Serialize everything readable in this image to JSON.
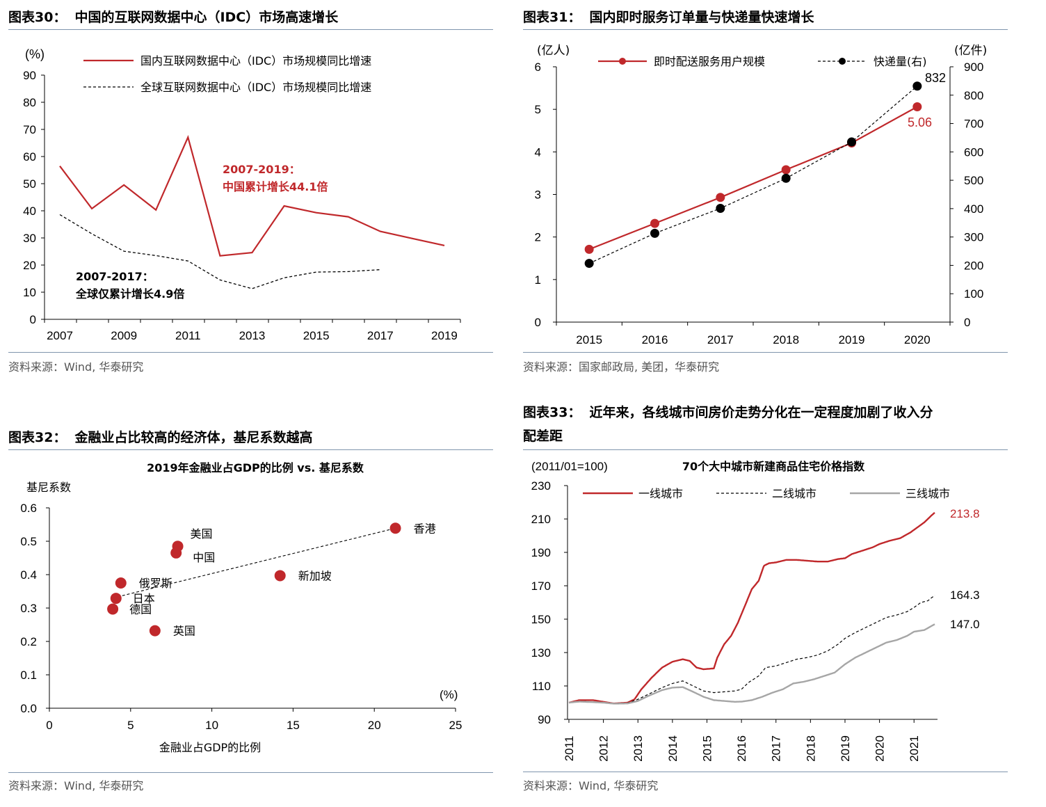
{
  "charts": [
    {
      "fig_no": "图表30：",
      "heading": "中国的互联网数据中心（IDC）市场高速增长",
      "source": "资料来源：Wind, 华泰研究",
      "unit_left": "(%)",
      "annotation_cn": [
        "2007-2019：",
        "中国累计增长44.1倍"
      ],
      "annotation_global": [
        "2007-2017：",
        "全球仅累计增长4.9倍"
      ]
    },
    {
      "fig_no": "图表31：",
      "heading": "国内即时服务订单量与快递量快速增长",
      "source": "资料来源：国家邮政局, 美团，华泰研究",
      "unit_left": "(亿人)",
      "unit_right": "(亿件)",
      "label_end_left": "5.06",
      "label_end_right": "832"
    },
    {
      "fig_no": "图表32：",
      "heading": "金融业占比较高的经济体，基尼系数越高",
      "source": "资料来源：Wind, 华泰研究",
      "subtitle": "2019年金融业占GDP的比例 vs. 基尼系数",
      "unit_x": "(%)"
    },
    {
      "fig_no": "图表33：",
      "heading": [
        "近年来，各线城市间房价走势分化在一定程度加剧了收入分",
        "配差距"
      ],
      "source": "资料来源：Wind, 华泰研究",
      "subtitle": "70个大中城市新建商品住宅价格指数",
      "unit_left": "(2011/01=100)",
      "end_labels": [
        "213.8",
        "164.3",
        "147.0"
      ]
    }
  ],
  "chart_data": [
    {
      "type": "line",
      "x": [
        2007,
        2008,
        2009,
        2010,
        2011,
        2012,
        2013,
        2014,
        2015,
        2016,
        2017,
        2018,
        2019
      ],
      "series": [
        {
          "name": "国内互联网数据中心（IDC）市场规模同比增速",
          "color": "#c0282b",
          "style": "solid",
          "values": [
            56.5,
            40.8,
            49.5,
            40.3,
            67.1,
            23.4,
            24.6,
            41.8,
            39.3,
            37.8,
            32.4,
            29.8,
            27.2
          ]
        },
        {
          "name": "全球互联网数据中心（IDC）市场规模同比增速",
          "color": "#000000",
          "style": "dashed",
          "values": [
            38.6,
            31.5,
            25.1,
            23.5,
            21.5,
            14.5,
            11.3,
            15.3,
            17.4,
            17.6,
            18.3,
            null,
            null
          ]
        }
      ],
      "xticks": [
        "2007",
        "2009",
        "2011",
        "2013",
        "2015",
        "2017",
        "2019"
      ],
      "ylim": [
        0,
        90
      ],
      "yticks": [
        "0",
        "10",
        "20",
        "30",
        "40",
        "50",
        "60",
        "70",
        "80",
        "90"
      ],
      "legend": "top-left",
      "grid": false
    },
    {
      "type": "line",
      "x": [
        2015,
        2016,
        2017,
        2018,
        2019,
        2020
      ],
      "series": [
        {
          "name": "即时配送服务用户规模",
          "axis": "left",
          "color": "#c0282b",
          "style": "solid",
          "marker": "circle",
          "values": [
            1.71,
            2.32,
            2.93,
            3.58,
            4.21,
            5.06
          ]
        },
        {
          "name": "快递量(右)",
          "axis": "right",
          "color": "#000000",
          "style": "dashed",
          "marker": "circle",
          "values": [
            207,
            313,
            401,
            507,
            635,
            832
          ]
        }
      ],
      "xticks": [
        "2015",
        "2016",
        "2017",
        "2018",
        "2019",
        "2020"
      ],
      "ylim_left": [
        0,
        6
      ],
      "yticks_left": [
        "0",
        "1",
        "2",
        "3",
        "4",
        "5",
        "6"
      ],
      "ylim_right": [
        0,
        900
      ],
      "yticks_right": [
        "0",
        "100",
        "200",
        "300",
        "400",
        "500",
        "600",
        "700",
        "800",
        "900"
      ],
      "legend": "top",
      "grid": false
    },
    {
      "type": "scatter",
      "xlabel": "金融业占GDP的比例",
      "ylabel": "基尼系数",
      "xlim": [
        0,
        25
      ],
      "xticks": [
        "0",
        "5",
        "10",
        "15",
        "20",
        "25"
      ],
      "ylim": [
        0,
        0.6
      ],
      "yticks": [
        "0.0",
        "0.1",
        "0.2",
        "0.3",
        "0.4",
        "0.5",
        "0.6"
      ],
      "color": "#c0282b",
      "points": [
        {
          "label": "香港",
          "x": 21.3,
          "y": 0.539
        },
        {
          "label": "美国",
          "x": 7.9,
          "y": 0.485
        },
        {
          "label": "中国",
          "x": 7.8,
          "y": 0.465
        },
        {
          "label": "新加坡",
          "x": 14.2,
          "y": 0.397
        },
        {
          "label": "俄罗斯",
          "x": 4.4,
          "y": 0.375
        },
        {
          "label": "日本",
          "x": 4.1,
          "y": 0.329
        },
        {
          "label": "德国",
          "x": 3.9,
          "y": 0.297
        },
        {
          "label": "英国",
          "x": 6.5,
          "y": 0.232
        }
      ],
      "trendline": {
        "x": [
          3.9,
          21.3
        ],
        "y": [
          0.33,
          0.539
        ],
        "style": "dashed",
        "color": "#000000"
      },
      "grid": false
    },
    {
      "type": "line",
      "x_start": 2011.0,
      "x_end": 2021.6,
      "sample_step": 0.1,
      "xticks": [
        "2011",
        "2012",
        "2013",
        "2014",
        "2015",
        "2016",
        "2017",
        "2018",
        "2019",
        "2020",
        "2021"
      ],
      "ylim": [
        90,
        230
      ],
      "yticks": [
        "90",
        "110",
        "130",
        "150",
        "170",
        "190",
        "210",
        "230"
      ],
      "series": [
        {
          "name": "一线城市",
          "color": "#c0282b",
          "style": "solid",
          "knots": [
            [
              2011.0,
              100
            ],
            [
              2011.3,
              101.5
            ],
            [
              2011.7,
              101.5
            ],
            [
              2012.0,
              100.5
            ],
            [
              2012.3,
              99.5
            ],
            [
              2012.7,
              100
            ],
            [
              2012.9,
              102
            ],
            [
              2013.1,
              108
            ],
            [
              2013.4,
              115
            ],
            [
              2013.7,
              121
            ],
            [
              2014.0,
              124.5
            ],
            [
              2014.3,
              126
            ],
            [
              2014.5,
              125
            ],
            [
              2014.7,
              121
            ],
            [
              2014.9,
              120
            ],
            [
              2015.2,
              120.5
            ],
            [
              2015.3,
              127
            ],
            [
              2015.5,
              135
            ],
            [
              2015.7,
              140
            ],
            [
              2015.9,
              148
            ],
            [
              2016.1,
              158
            ],
            [
              2016.3,
              168
            ],
            [
              2016.5,
              173
            ],
            [
              2016.65,
              182
            ],
            [
              2016.8,
              183.5
            ],
            [
              2017.0,
              184
            ],
            [
              2017.3,
              185.5
            ],
            [
              2017.6,
              185.5
            ],
            [
              2017.9,
              185
            ],
            [
              2018.2,
              184.5
            ],
            [
              2018.5,
              184.5
            ],
            [
              2018.8,
              186
            ],
            [
              2019.0,
              186.5
            ],
            [
              2019.2,
              189
            ],
            [
              2019.5,
              191
            ],
            [
              2019.8,
              193
            ],
            [
              2020.0,
              195
            ],
            [
              2020.3,
              197
            ],
            [
              2020.6,
              198.5
            ],
            [
              2020.9,
              202
            ],
            [
              2021.1,
              205
            ],
            [
              2021.3,
              208
            ],
            [
              2021.5,
              212
            ],
            [
              2021.6,
              213.8
            ]
          ]
        },
        {
          "name": "二线城市",
          "color": "#000000",
          "style": "dashed",
          "knots": [
            [
              2011.0,
              100
            ],
            [
              2011.3,
              100.8
            ],
            [
              2011.7,
              100.5
            ],
            [
              2012.0,
              100
            ],
            [
              2012.3,
              99.5
            ],
            [
              2012.7,
              99.8
            ],
            [
              2013.0,
              102
            ],
            [
              2013.3,
              105
            ],
            [
              2013.7,
              109
            ],
            [
              2014.0,
              111.5
            ],
            [
              2014.3,
              113
            ],
            [
              2014.6,
              110
            ],
            [
              2014.9,
              107
            ],
            [
              2015.2,
              106
            ],
            [
              2015.5,
              106.5
            ],
            [
              2015.8,
              107
            ],
            [
              2016.0,
              108
            ],
            [
              2016.2,
              112
            ],
            [
              2016.5,
              116
            ],
            [
              2016.7,
              121
            ],
            [
              2017.0,
              122
            ],
            [
              2017.3,
              124
            ],
            [
              2017.6,
              126
            ],
            [
              2017.9,
              127
            ],
            [
              2018.2,
              128.5
            ],
            [
              2018.5,
              131
            ],
            [
              2018.8,
              135
            ],
            [
              2019.0,
              138.5
            ],
            [
              2019.3,
              142
            ],
            [
              2019.6,
              145
            ],
            [
              2019.9,
              148
            ],
            [
              2020.2,
              151
            ],
            [
              2020.5,
              152.5
            ],
            [
              2020.8,
              154.5
            ],
            [
              2021.0,
              157
            ],
            [
              2021.2,
              160
            ],
            [
              2021.4,
              161
            ],
            [
              2021.6,
              164.3
            ]
          ]
        },
        {
          "name": "三线城市",
          "color": "#a6a6a6",
          "style": "solid",
          "knots": [
            [
              2011.0,
              100
            ],
            [
              2011.3,
              100.6
            ],
            [
              2011.7,
              100.3
            ],
            [
              2012.0,
              100
            ],
            [
              2012.3,
              99.4
            ],
            [
              2012.7,
              99.5
            ],
            [
              2013.0,
              101
            ],
            [
              2013.3,
              104
            ],
            [
              2013.7,
              107.5
            ],
            [
              2014.0,
              109
            ],
            [
              2014.3,
              109.3
            ],
            [
              2014.6,
              106.5
            ],
            [
              2014.9,
              103.5
            ],
            [
              2015.2,
              101.5
            ],
            [
              2015.5,
              101
            ],
            [
              2015.8,
              100.5
            ],
            [
              2016.0,
              100.6
            ],
            [
              2016.3,
              101.5
            ],
            [
              2016.6,
              103.5
            ],
            [
              2016.9,
              106
            ],
            [
              2017.2,
              108
            ],
            [
              2017.5,
              111.5
            ],
            [
              2017.8,
              112.5
            ],
            [
              2018.1,
              114
            ],
            [
              2018.4,
              116
            ],
            [
              2018.7,
              118
            ],
            [
              2019.0,
              123
            ],
            [
              2019.3,
              127
            ],
            [
              2019.6,
              130
            ],
            [
              2019.9,
              133
            ],
            [
              2020.2,
              136
            ],
            [
              2020.5,
              137.5
            ],
            [
              2020.8,
              140
            ],
            [
              2021.0,
              142.5
            ],
            [
              2021.3,
              143.5
            ],
            [
              2021.6,
              147.0
            ]
          ]
        }
      ],
      "legend": "top",
      "grid": false
    }
  ]
}
